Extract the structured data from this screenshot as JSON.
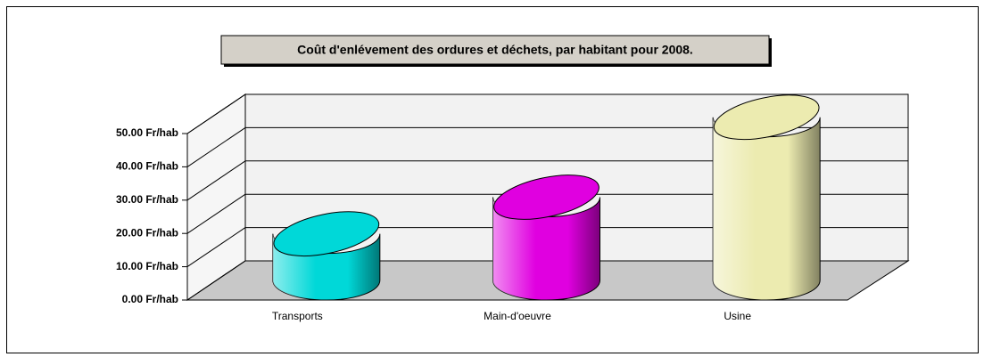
{
  "chart_data": {
    "type": "cylinder",
    "title": "Coût d'enlévement des ordures et déchets, par habitant pour 2008.",
    "categories": [
      "Transports",
      "Main-d'oeuvre",
      "Usine"
    ],
    "values": [
      14,
      25,
      49
    ],
    "colors": [
      "#00d8d8",
      "#e000e0",
      "#ecebb0"
    ],
    "ylim": [
      0,
      50
    ],
    "yticks": [
      {
        "value": 0,
        "label": "0.00 Fr/hab"
      },
      {
        "value": 10,
        "label": "10.00 Fr/hab"
      },
      {
        "value": 20,
        "label": "20.00 Fr/hab"
      },
      {
        "value": 30,
        "label": "30.00 Fr/hab"
      },
      {
        "value": 40,
        "label": "40.00 Fr/hab"
      },
      {
        "value": 50,
        "label": "50.00 Fr/hab"
      }
    ],
    "grid": true
  }
}
